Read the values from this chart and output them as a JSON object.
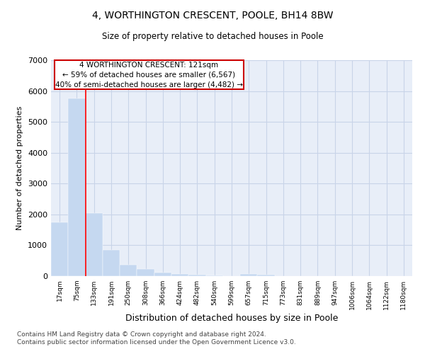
{
  "title": "4, WORTHINGTON CRESCENT, POOLE, BH14 8BW",
  "subtitle": "Size of property relative to detached houses in Poole",
  "xlabel": "Distribution of detached houses by size in Poole",
  "ylabel": "Number of detached properties",
  "bar_color": "#c5d8f0",
  "bar_edge_color": "#c5d8f0",
  "grid_color": "#c8d4e8",
  "background_color": "#e8eef8",
  "annotation_box_color": "#cc0000",
  "annotation_text": "4 WORTHINGTON CRESCENT: 121sqm\n← 59% of detached houses are smaller (6,567)\n40% of semi-detached houses are larger (4,482) →",
  "categories": [
    "17sqm",
    "75sqm",
    "133sqm",
    "191sqm",
    "250sqm",
    "308sqm",
    "366sqm",
    "424sqm",
    "482sqm",
    "540sqm",
    "599sqm",
    "657sqm",
    "715sqm",
    "773sqm",
    "831sqm",
    "889sqm",
    "947sqm",
    "1006sqm",
    "1064sqm",
    "1122sqm",
    "1180sqm"
  ],
  "values": [
    1750,
    5750,
    2050,
    850,
    375,
    225,
    125,
    75,
    50,
    25,
    0,
    75,
    50,
    0,
    0,
    0,
    0,
    0,
    0,
    0,
    0
  ],
  "ylim": [
    0,
    7000
  ],
  "yticks": [
    0,
    1000,
    2000,
    3000,
    4000,
    5000,
    6000,
    7000
  ],
  "footnote": "Contains HM Land Registry data © Crown copyright and database right 2024.\nContains public sector information licensed under the Open Government Licence v3.0.",
  "red_line_x": 1.5
}
